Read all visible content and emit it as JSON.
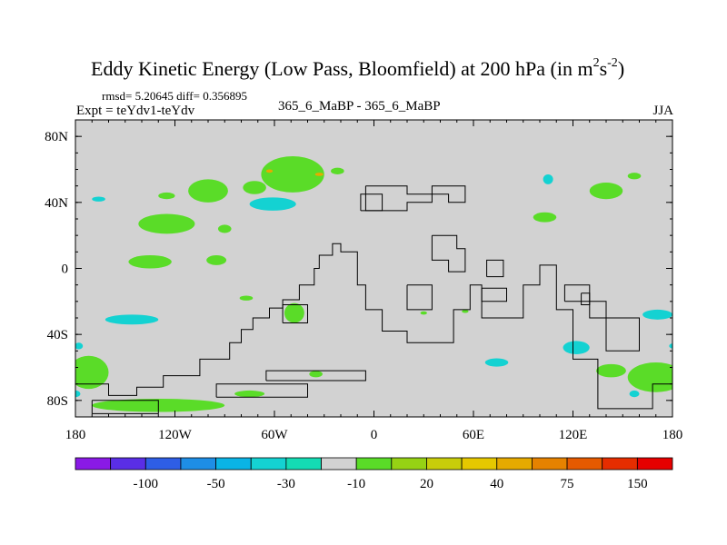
{
  "chart_data": {
    "type": "map",
    "title_main": "Eddy Kinetic Energy (Low Pass, Bloomfield) at 200 hPa (in m",
    "title_units_sup1": "2",
    "title_units_mid": "s",
    "title_units_sup2": "-2",
    "title_units_close": ")",
    "stats": "rmsd= 5.20645 diff= 0.356895",
    "left_label": "Expt = teYdv1-teYdv",
    "center_label": "365_6_MaBP - 365_6_MaBP",
    "right_label": "JJA",
    "xlim": [
      -180,
      180
    ],
    "ylim": [
      -90,
      90
    ],
    "x_ticks": [
      {
        "value": -180,
        "label": "180"
      },
      {
        "value": -120,
        "label": "120W"
      },
      {
        "value": -60,
        "label": "60W"
      },
      {
        "value": 0,
        "label": "0"
      },
      {
        "value": 60,
        "label": "60E"
      },
      {
        "value": 120,
        "label": "120E"
      },
      {
        "value": 180,
        "label": "180"
      }
    ],
    "y_ticks": [
      {
        "value": 80,
        "label": "80N"
      },
      {
        "value": 40,
        "label": "40N"
      },
      {
        "value": 0,
        "label": "0"
      },
      {
        "value": -40,
        "label": "40S"
      },
      {
        "value": -80,
        "label": "80S"
      }
    ],
    "colorbar": {
      "colors": [
        "#8a1ae6",
        "#5a2ee6",
        "#2e5ee6",
        "#1e8ee6",
        "#0ab4e6",
        "#14d2d2",
        "#14dcb4",
        "#d2d2d2",
        "#5adc28",
        "#96d214",
        "#c8cd0a",
        "#e6c800",
        "#e6aa00",
        "#e68200",
        "#e65a00",
        "#e62d00",
        "#e60000"
      ],
      "tick_labels": [
        {
          "after_box": 2,
          "label": "-100"
        },
        {
          "after_box": 4,
          "label": "-50"
        },
        {
          "after_box": 6,
          "label": "-30"
        },
        {
          "after_box": 8,
          "label": "-10"
        },
        {
          "after_box": 10,
          "label": "20"
        },
        {
          "after_box": 12,
          "label": "40"
        },
        {
          "after_box": 14,
          "label": "75"
        },
        {
          "after_box": 16,
          "label": "150"
        }
      ]
    },
    "anomaly_blobs": [
      {
        "lon": -125,
        "lat": 44,
        "rlon": 5,
        "rlat": 2,
        "class": "+10..20"
      },
      {
        "lon": -100,
        "lat": 47,
        "rlon": 12,
        "rlat": 7,
        "class": "+10..20"
      },
      {
        "lon": -125,
        "lat": 27,
        "rlon": 17,
        "rlat": 6,
        "class": "+10..20"
      },
      {
        "lon": -90,
        "lat": 24,
        "rlon": 4,
        "rlat": 2.5,
        "class": "+10..20"
      },
      {
        "lon": -72,
        "lat": 49,
        "rlon": 7,
        "rlat": 4,
        "class": "+10..20"
      },
      {
        "lon": -49,
        "lat": 57,
        "rlon": 19,
        "rlat": 11,
        "class": "+10..20"
      },
      {
        "lon": -22,
        "lat": 59,
        "rlon": 4,
        "rlat": 2,
        "class": "+10..20"
      },
      {
        "lon": -135,
        "lat": 4,
        "rlon": 13,
        "rlat": 4,
        "class": "+10..20"
      },
      {
        "lon": -95,
        "lat": 5,
        "rlon": 6,
        "rlat": 3,
        "class": "+10..20"
      },
      {
        "lon": -77,
        "lat": -18,
        "rlon": 4,
        "rlat": 1.5,
        "class": "+10..20"
      },
      {
        "lon": -48,
        "lat": -27,
        "rlon": 6,
        "rlat": 6,
        "class": "+10..20"
      },
      {
        "lon": -172,
        "lat": -63,
        "rlon": 12,
        "rlat": 10,
        "class": "+10..20"
      },
      {
        "lon": -130,
        "lat": -83,
        "rlon": 40,
        "rlat": 4,
        "class": "+10..20"
      },
      {
        "lon": -75,
        "lat": -76,
        "rlon": 9,
        "rlat": 2,
        "class": "+10..20"
      },
      {
        "lon": -35,
        "lat": -64,
        "rlon": 4,
        "rlat": 2,
        "class": "+10..20"
      },
      {
        "lon": 140,
        "lat": 47,
        "rlon": 10,
        "rlat": 5,
        "class": "+10..20"
      },
      {
        "lon": 157,
        "lat": 56,
        "rlon": 4,
        "rlat": 2,
        "class": "+10..20"
      },
      {
        "lon": 103,
        "lat": 31,
        "rlon": 7,
        "rlat": 3,
        "class": "+10..20"
      },
      {
        "lon": 143,
        "lat": -62,
        "rlon": 9,
        "rlat": 4,
        "class": "+10..20"
      },
      {
        "lon": 170,
        "lat": -66,
        "rlon": 17,
        "rlat": 9,
        "class": "+10..20"
      },
      {
        "lon": 30,
        "lat": -27,
        "rlon": 2,
        "rlat": 1,
        "class": "+10..20"
      },
      {
        "lon": 55,
        "lat": -26,
        "rlon": 2,
        "rlat": 1,
        "class": "+10..20"
      },
      {
        "lon": -166,
        "lat": 42,
        "rlon": 4,
        "rlat": 1.5,
        "class": "-10..-20"
      },
      {
        "lon": -61,
        "lat": 39,
        "rlon": 14,
        "rlat": 4,
        "class": "-10..-20"
      },
      {
        "lon": -146,
        "lat": -31,
        "rlon": 16,
        "rlat": 3,
        "class": "-10..-20"
      },
      {
        "lon": -178,
        "lat": -47,
        "rlon": 2.5,
        "rlat": 2,
        "class": "-10..-20"
      },
      {
        "lon": -180,
        "lat": -76,
        "rlon": 3,
        "rlat": 2,
        "class": "-10..-20"
      },
      {
        "lon": 122,
        "lat": -48,
        "rlon": 8,
        "rlat": 4,
        "class": "-10..-20"
      },
      {
        "lon": 74,
        "lat": -57,
        "rlon": 7,
        "rlat": 2.5,
        "class": "-10..-20"
      },
      {
        "lon": 157,
        "lat": -76,
        "rlon": 3,
        "rlat": 2,
        "class": "-10..-20"
      },
      {
        "lon": 171,
        "lat": -28,
        "rlon": 9,
        "rlat": 3,
        "class": "-10..-20"
      },
      {
        "lon": 180,
        "lat": -47,
        "rlon": 2,
        "rlat": 1.5,
        "class": "-10..-20"
      },
      {
        "lon": 105,
        "lat": 54,
        "rlon": 3,
        "rlat": 3,
        "class": "-10..-20"
      },
      {
        "lon": -63,
        "lat": 59,
        "rlon": 2,
        "rlat": 1,
        "class": "+20..30"
      },
      {
        "lon": -33,
        "lat": 57,
        "rlon": 2.5,
        "rlat": 1,
        "class": "+20..30"
      }
    ],
    "coastlines_lonlat": [
      [
        [
          -180,
          -70
        ],
        [
          -160,
          -70
        ],
        [
          -160,
          -77
        ],
        [
          -143,
          -77
        ],
        [
          -143,
          -72
        ],
        [
          -127,
          -72
        ],
        [
          -127,
          -65
        ],
        [
          -105,
          -65
        ],
        [
          -105,
          -55
        ],
        [
          -87,
          -55
        ],
        [
          -87,
          -45
        ],
        [
          -80,
          -45
        ],
        [
          -80,
          -37
        ],
        [
          -73,
          -37
        ],
        [
          -73,
          -30
        ],
        [
          -63,
          -30
        ],
        [
          -63,
          -24
        ],
        [
          -55,
          -24
        ],
        [
          -55,
          -19
        ],
        [
          -45,
          -19
        ],
        [
          -45,
          -10
        ],
        [
          -36,
          -10
        ],
        [
          -36,
          0
        ],
        [
          -33,
          0
        ],
        [
          -33,
          8
        ],
        [
          -25,
          8
        ],
        [
          -25,
          15
        ],
        [
          -20,
          15
        ],
        [
          -20,
          10
        ],
        [
          -10,
          10
        ],
        [
          -10,
          -10
        ],
        [
          -5,
          -10
        ],
        [
          -5,
          -25
        ],
        [
          5,
          -25
        ],
        [
          5,
          -38
        ],
        [
          20,
          -38
        ],
        [
          20,
          -45
        ],
        [
          48,
          -45
        ],
        [
          48,
          -25
        ],
        [
          58,
          -25
        ],
        [
          58,
          -10
        ],
        [
          65,
          -10
        ],
        [
          65,
          -30
        ],
        [
          90,
          -30
        ],
        [
          90,
          -10
        ],
        [
          100,
          -10
        ],
        [
          100,
          2
        ],
        [
          110,
          2
        ],
        [
          110,
          -25
        ],
        [
          120,
          -25
        ],
        [
          120,
          -55
        ],
        [
          135,
          -55
        ],
        [
          135,
          -85
        ],
        [
          168,
          -85
        ],
        [
          168,
          -70
        ],
        [
          180,
          -70
        ]
      ],
      [
        [
          -170,
          -80
        ],
        [
          -130,
          -80
        ],
        [
          -130,
          -88
        ],
        [
          -170,
          -88
        ],
        [
          -170,
          -80
        ]
      ],
      [
        [
          -95,
          -78
        ],
        [
          -40,
          -78
        ],
        [
          -40,
          -70
        ],
        [
          -95,
          -70
        ],
        [
          -95,
          -78
        ]
      ],
      [
        [
          -65,
          -68
        ],
        [
          -5,
          -68
        ],
        [
          -5,
          -62
        ],
        [
          -65,
          -62
        ],
        [
          -65,
          -68
        ]
      ],
      [
        [
          -55,
          -33
        ],
        [
          -40,
          -33
        ],
        [
          -40,
          -22
        ],
        [
          -55,
          -22
        ],
        [
          -55,
          -33
        ]
      ],
      [
        [
          -5,
          50
        ],
        [
          -5,
          35
        ],
        [
          20,
          35
        ],
        [
          20,
          40
        ],
        [
          35,
          40
        ],
        [
          35,
          45
        ],
        [
          45,
          45
        ],
        [
          45,
          40
        ],
        [
          55,
          40
        ],
        [
          55,
          50
        ],
        [
          35,
          50
        ],
        [
          35,
          45
        ],
        [
          20,
          45
        ],
        [
          20,
          50
        ],
        [
          -5,
          50
        ]
      ],
      [
        [
          -8,
          35
        ],
        [
          5,
          35
        ],
        [
          5,
          45
        ],
        [
          -8,
          45
        ],
        [
          -8,
          35
        ]
      ],
      [
        [
          35,
          20
        ],
        [
          50,
          20
        ],
        [
          50,
          12
        ],
        [
          55,
          12
        ],
        [
          55,
          -2
        ],
        [
          45,
          -2
        ],
        [
          45,
          5
        ],
        [
          35,
          5
        ],
        [
          35,
          20
        ]
      ],
      [
        [
          20,
          -10
        ],
        [
          35,
          -10
        ],
        [
          35,
          -25
        ],
        [
          20,
          -25
        ],
        [
          20,
          -10
        ]
      ],
      [
        [
          115,
          -20
        ],
        [
          140,
          -20
        ],
        [
          140,
          -50
        ],
        [
          160,
          -50
        ],
        [
          160,
          -30
        ],
        [
          130,
          -30
        ],
        [
          130,
          -10
        ],
        [
          115,
          -10
        ],
        [
          115,
          -20
        ]
      ],
      [
        [
          125,
          -15
        ],
        [
          130,
          -15
        ],
        [
          130,
          -22
        ],
        [
          125,
          -22
        ],
        [
          125,
          -15
        ]
      ],
      [
        [
          65,
          -12
        ],
        [
          80,
          -12
        ],
        [
          80,
          -20
        ],
        [
          65,
          -20
        ],
        [
          65,
          -12
        ]
      ],
      [
        [
          68,
          -5
        ],
        [
          78,
          -5
        ],
        [
          78,
          5
        ],
        [
          68,
          5
        ],
        [
          68,
          -5
        ]
      ]
    ]
  }
}
